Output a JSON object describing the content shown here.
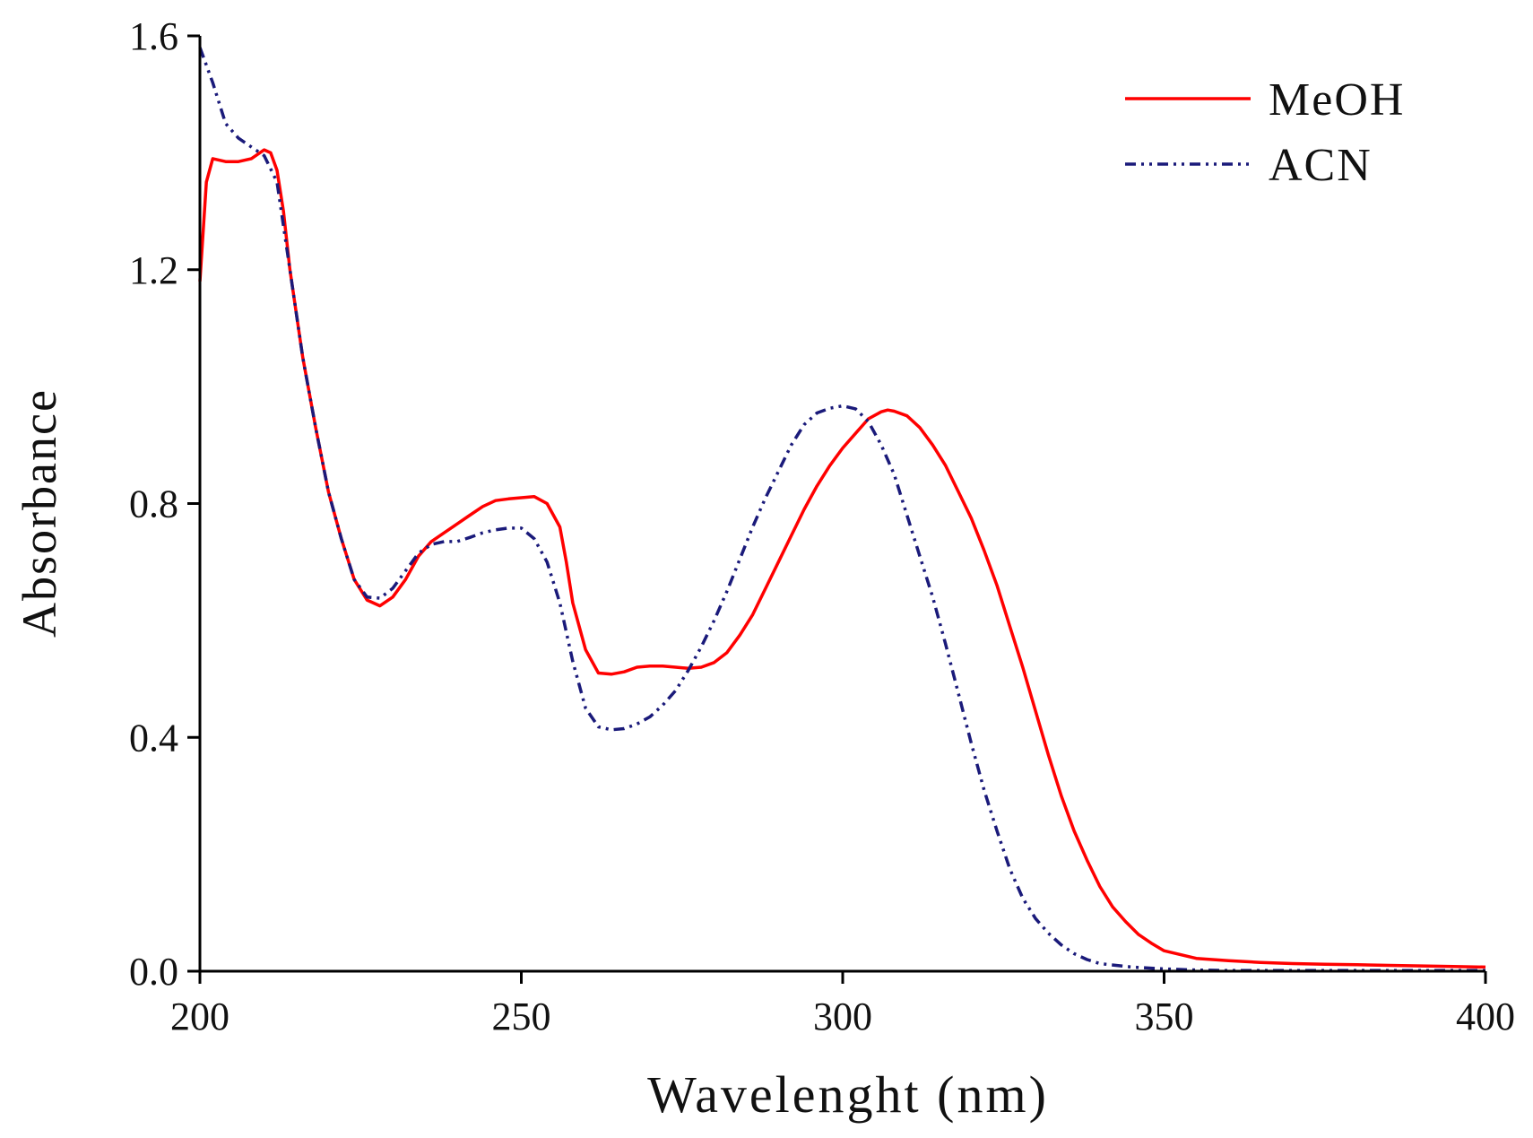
{
  "chart_data": {
    "type": "line",
    "title": "",
    "xlabel": "Wavelenght (nm)",
    "ylabel": "Absorbance",
    "xlim": [
      200,
      400
    ],
    "ylim": [
      0,
      1.6
    ],
    "xticks": [
      200,
      250,
      300,
      350,
      400
    ],
    "xtick_labels": [
      "200",
      "250",
      "300",
      "350",
      "400"
    ],
    "yticks": [
      0,
      0.4,
      0.8,
      1.2,
      1.6
    ],
    "ytick_labels": [
      "0.0",
      "0.4",
      "0.8",
      "1.2",
      "1.6"
    ],
    "grid": false,
    "legend_position": "top-right",
    "series": [
      {
        "name": "MeOH",
        "color": "#ff0000",
        "style": "solid",
        "x": [
          200,
          201,
          202,
          204,
          206,
          208,
          210,
          211,
          212,
          213,
          214,
          216,
          218,
          220,
          222,
          224,
          226,
          228,
          230,
          232,
          234,
          236,
          238,
          240,
          242,
          244,
          246,
          248,
          250,
          252,
          254,
          256,
          257,
          258,
          260,
          262,
          264,
          266,
          268,
          270,
          272,
          274,
          276,
          278,
          280,
          282,
          284,
          286,
          288,
          290,
          292,
          294,
          296,
          298,
          300,
          302,
          304,
          306,
          307,
          308,
          310,
          312,
          314,
          316,
          318,
          320,
          322,
          324,
          326,
          328,
          330,
          332,
          334,
          336,
          338,
          340,
          342,
          344,
          346,
          348,
          350,
          355,
          360,
          365,
          370,
          375,
          380,
          385,
          390,
          395,
          400
        ],
        "y": [
          1.18,
          1.35,
          1.39,
          1.385,
          1.385,
          1.39,
          1.405,
          1.4,
          1.37,
          1.3,
          1.2,
          1.05,
          0.93,
          0.82,
          0.74,
          0.67,
          0.635,
          0.625,
          0.64,
          0.67,
          0.71,
          0.735,
          0.75,
          0.765,
          0.78,
          0.795,
          0.805,
          0.808,
          0.81,
          0.812,
          0.8,
          0.76,
          0.7,
          0.63,
          0.55,
          0.51,
          0.508,
          0.512,
          0.52,
          0.522,
          0.522,
          0.52,
          0.518,
          0.52,
          0.528,
          0.545,
          0.575,
          0.61,
          0.655,
          0.7,
          0.745,
          0.79,
          0.83,
          0.865,
          0.895,
          0.92,
          0.945,
          0.957,
          0.96,
          0.958,
          0.95,
          0.93,
          0.9,
          0.865,
          0.82,
          0.775,
          0.72,
          0.66,
          0.59,
          0.52,
          0.445,
          0.37,
          0.3,
          0.24,
          0.19,
          0.145,
          0.11,
          0.085,
          0.063,
          0.048,
          0.035,
          0.022,
          0.018,
          0.015,
          0.013,
          0.012,
          0.011,
          0.01,
          0.009,
          0.008,
          0.007
        ]
      },
      {
        "name": "ACN",
        "color": "#1a1a7a",
        "style": "dash-dot-dot",
        "x": [
          200,
          202,
          204,
          206,
          208,
          210,
          212,
          214,
          216,
          218,
          220,
          222,
          224,
          226,
          228,
          230,
          232,
          234,
          236,
          238,
          240,
          242,
          244,
          246,
          248,
          250,
          252,
          254,
          256,
          258,
          260,
          262,
          264,
          266,
          268,
          270,
          272,
          274,
          276,
          278,
          280,
          282,
          284,
          286,
          288,
          290,
          292,
          294,
          296,
          298,
          300,
          302,
          304,
          306,
          308,
          310,
          312,
          314,
          316,
          318,
          320,
          322,
          324,
          326,
          328,
          330,
          332,
          334,
          336,
          338,
          340,
          345,
          350,
          355,
          360,
          370,
          380,
          390,
          400
        ],
        "y": [
          1.58,
          1.52,
          1.45,
          1.425,
          1.41,
          1.395,
          1.35,
          1.2,
          1.05,
          0.93,
          0.82,
          0.74,
          0.67,
          0.64,
          0.638,
          0.655,
          0.685,
          0.715,
          0.73,
          0.735,
          0.735,
          0.742,
          0.75,
          0.755,
          0.758,
          0.758,
          0.74,
          0.7,
          0.63,
          0.53,
          0.45,
          0.418,
          0.413,
          0.415,
          0.423,
          0.435,
          0.455,
          0.48,
          0.515,
          0.555,
          0.6,
          0.65,
          0.705,
          0.76,
          0.81,
          0.855,
          0.9,
          0.935,
          0.955,
          0.963,
          0.967,
          0.962,
          0.94,
          0.9,
          0.85,
          0.78,
          0.71,
          0.64,
          0.56,
          0.475,
          0.39,
          0.31,
          0.24,
          0.175,
          0.125,
          0.09,
          0.065,
          0.045,
          0.03,
          0.02,
          0.013,
          0.007,
          0.004,
          0.002,
          0.001,
          0.001,
          0.001,
          0.001,
          0.001
        ]
      }
    ]
  }
}
